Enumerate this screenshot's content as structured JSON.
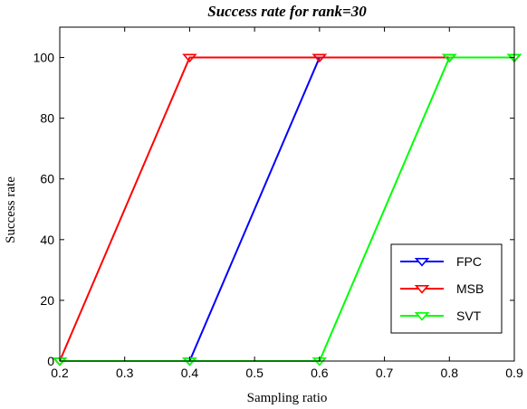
{
  "chart_data": {
    "type": "line",
    "title": "Success rate for rank=30",
    "xlabel": "Sampling ratio",
    "ylabel": "Success rate",
    "xlim": [
      0.2,
      0.9
    ],
    "ylim": [
      0,
      110
    ],
    "xticks": [
      0.2,
      0.3,
      0.4,
      0.5,
      0.6,
      0.7,
      0.8,
      0.9
    ],
    "xtick_labels": [
      "0.2",
      "0.3",
      "0.4",
      "0.5",
      "0.6",
      "0.7",
      "0.8",
      "0.9"
    ],
    "yticks": [
      0,
      20,
      40,
      60,
      80,
      100
    ],
    "ytick_labels": [
      "0",
      "20",
      "40",
      "60",
      "80",
      "100"
    ],
    "grid": false,
    "legend_position": "lower-right",
    "marker": "triangle-down",
    "series": [
      {
        "name": "FPC",
        "color": "#0000ff",
        "x": [
          0.2,
          0.4,
          0.6,
          0.8,
          0.9
        ],
        "y": [
          0,
          0,
          100,
          100,
          100
        ]
      },
      {
        "name": "MSB",
        "color": "#ff0000",
        "x": [
          0.2,
          0.4,
          0.6,
          0.8,
          0.9
        ],
        "y": [
          0,
          100,
          100,
          100,
          100
        ]
      },
      {
        "name": "SVT",
        "color": "#00ff00",
        "x": [
          0.2,
          0.4,
          0.6,
          0.8,
          0.9
        ],
        "y": [
          0,
          0,
          0,
          100,
          100
        ]
      }
    ]
  }
}
